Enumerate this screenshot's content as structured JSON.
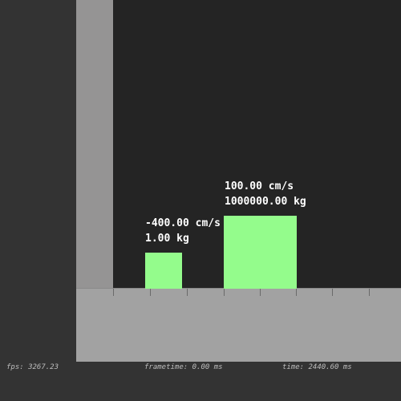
{
  "simulation": {
    "block_small": {
      "velocity": "-400.00 cm/s",
      "mass": "1.00 kg"
    },
    "block_large": {
      "velocity": "100.00 cm/s",
      "mass": "1000000.00 kg"
    }
  },
  "status_bar": {
    "fps": "fps: 3267.23",
    "frametime": "frametime: 0.00 ms",
    "time": "time: 2440.60 ms"
  },
  "colors": {
    "background": "#333333",
    "sim_area": "#242424",
    "wall": "#959494",
    "floor": "#a2a2a2",
    "block": "#94fc8c",
    "label": "#ffffff",
    "status_text": "#bdbdbd"
  }
}
